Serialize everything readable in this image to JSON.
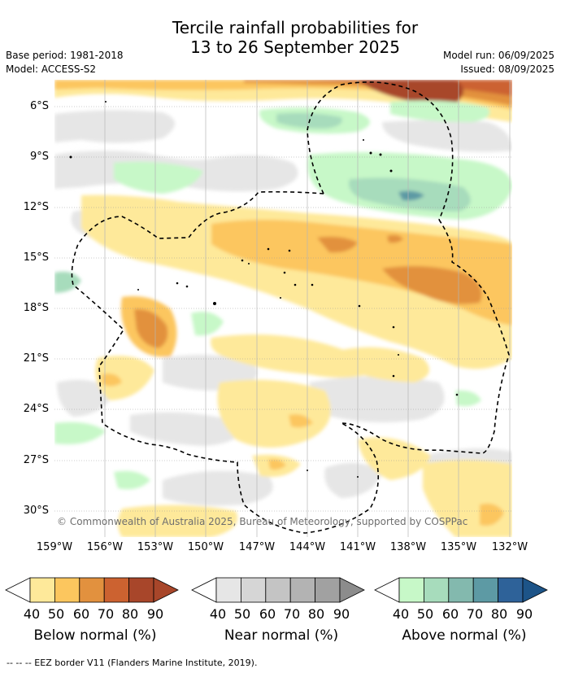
{
  "title": "Tercile rainfall probabilities for\n13 to 26 September 2025",
  "meta_left": {
    "base_period": "Base period: 1981-2018",
    "model": "Model: ACCESS-S2"
  },
  "meta_right": {
    "model_run": "Model run: 06/09/2025",
    "issued": "Issued: 08/09/2025"
  },
  "copyright": "© Commonwealth of Australia 2025, Bureau of Meteorology, supported by COSPPac",
  "y_axis": [
    "6°S",
    "9°S",
    "12°S",
    "15°S",
    "18°S",
    "21°S",
    "24°S",
    "27°S",
    "30°S"
  ],
  "x_axis": [
    "159°W",
    "156°W",
    "153°W",
    "150°W",
    "147°W",
    "144°W",
    "141°W",
    "138°W",
    "135°W",
    "132°W"
  ],
  "legends": [
    {
      "title": "Below normal (%)",
      "colors": [
        "#ffffff",
        "#fee99a",
        "#fcc65e",
        "#e2913e",
        "#cc6230",
        "#a8462a",
        "#a8462a"
      ]
    },
    {
      "title": "Near normal (%)",
      "colors": [
        "#ffffff",
        "#e6e6e6",
        "#d6d6d6",
        "#c4c4c4",
        "#b3b3b3",
        "#a1a1a1",
        "#8c8c8c"
      ]
    },
    {
      "title": "Above normal (%)",
      "colors": [
        "#ffffff",
        "#c7f8c8",
        "#a7dcbc",
        "#83b9ae",
        "#5d9aa4",
        "#2e6299",
        "#1d5488"
      ]
    }
  ],
  "legend_ticks": [
    "40",
    "50",
    "60",
    "70",
    "80",
    "90"
  ],
  "footer": "-- -- -- EEZ border V11 (Flanders Marine Institute, 2019)."
}
